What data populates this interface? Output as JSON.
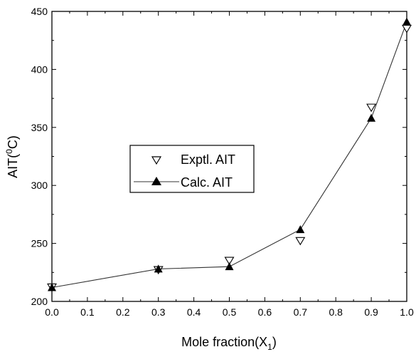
{
  "chart_data": {
    "type": "line",
    "xlabel_main": "Mole fraction(X",
    "xlabel_sub": "1",
    "xlabel_close": ")",
    "ylabel_main": "AIT(",
    "ylabel_sup": "0",
    "ylabel_unit": "C)",
    "xlim": [
      0.0,
      1.0
    ],
    "ylim": [
      200,
      450
    ],
    "xticks": [
      "0.0",
      "0.1",
      "0.2",
      "0.3",
      "0.4",
      "0.5",
      "0.6",
      "0.7",
      "0.8",
      "0.9",
      "1.0"
    ],
    "yticks": [
      "200",
      "250",
      "300",
      "350",
      "400",
      "450"
    ],
    "legend_position": "center-left",
    "series": [
      {
        "name": "Exptl. AIT",
        "marker": "open-triangle-down",
        "line": false,
        "x": [
          0.0,
          0.3,
          0.5,
          0.7,
          0.9,
          1.0
        ],
        "y": [
          212,
          227,
          235,
          252,
          367,
          435
        ]
      },
      {
        "name": "Calc. AIT",
        "marker": "filled-triangle-up",
        "line": true,
        "x": [
          0.0,
          0.3,
          0.5,
          0.7,
          0.9,
          1.0
        ],
        "y": [
          212,
          228,
          230,
          262,
          358,
          441
        ]
      }
    ],
    "colors": {
      "line": "#333333",
      "marker": "#000000",
      "axis": "#000000"
    }
  }
}
